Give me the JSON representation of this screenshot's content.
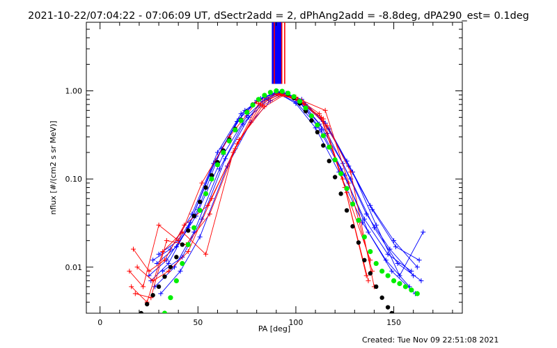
{
  "chart_data": {
    "type": "line",
    "title": "2021-10-22/07:04:22 - 07:06:09 UT, dSectr2add = 2, dPhAng2add = -8.8deg, dPA290_est=  0.1deg",
    "xlabel": "PA [deg]",
    "ylabel": "nflux [#/(cm2 s sr MeV)]",
    "footer": "Created: Tue Nov 09 22:51:08 2021",
    "xlim": [
      -7,
      185
    ],
    "ylim": [
      0.003,
      6.0
    ],
    "yscale": "log",
    "grid": false,
    "legend": "none",
    "x_ticks": [
      {
        "v": 0,
        "label": "0"
      },
      {
        "v": 50,
        "label": "50"
      },
      {
        "v": 100,
        "label": "100"
      },
      {
        "v": 150,
        "label": "150"
      }
    ],
    "y_ticks": [
      {
        "v": 0.01,
        "label": "0.01"
      },
      {
        "v": 0.1,
        "label": "0.10"
      },
      {
        "v": 1,
        "label": "1.00"
      }
    ],
    "colors": {
      "blue_series": "#0000ff",
      "red_series": "#ff0000",
      "green_fit": "#00ee00",
      "black_fit": "#000000"
    },
    "series": [
      {
        "color": "#0000ff",
        "style": "line-plus",
        "x": [
          25,
          34,
          45,
          58,
          70,
          80,
          90,
          100,
          110,
          122,
          134,
          146,
          158
        ],
        "y": [
          0.008,
          0.012,
          0.028,
          0.15,
          0.45,
          0.78,
          0.97,
          0.72,
          0.38,
          0.12,
          0.032,
          0.012,
          0.006
        ]
      },
      {
        "color": "#0000ff",
        "style": "line-plus",
        "x": [
          27,
          36,
          47,
          60,
          72,
          82,
          91,
          101,
          112,
          124,
          136,
          148,
          160
        ],
        "y": [
          0.012,
          0.016,
          0.04,
          0.2,
          0.55,
          0.82,
          0.98,
          0.78,
          0.42,
          0.15,
          0.04,
          0.016,
          0.008
        ]
      },
      {
        "color": "#0000ff",
        "style": "line-plus",
        "x": [
          28,
          38,
          48,
          61,
          73,
          83,
          92,
          102,
          113,
          125,
          137,
          149,
          161
        ],
        "y": [
          0.006,
          0.01,
          0.025,
          0.13,
          0.42,
          0.76,
          0.96,
          0.74,
          0.36,
          0.11,
          0.025,
          0.009,
          0.005
        ]
      },
      {
        "color": "#0000ff",
        "style": "line-plus",
        "x": [
          30,
          40,
          50,
          62,
          74,
          84,
          93,
          103,
          114,
          126,
          138,
          150,
          162
        ],
        "y": [
          0.014,
          0.02,
          0.045,
          0.22,
          0.6,
          0.85,
          0.97,
          0.8,
          0.45,
          0.16,
          0.05,
          0.02,
          0.01
        ]
      },
      {
        "color": "#0000ff",
        "style": "line-plus",
        "x": [
          32,
          42,
          52,
          64,
          76,
          86,
          94,
          104,
          116,
          128,
          140,
          152,
          164
        ],
        "y": [
          0.009,
          0.013,
          0.035,
          0.17,
          0.5,
          0.8,
          0.95,
          0.7,
          0.33,
          0.1,
          0.028,
          0.011,
          0.007
        ]
      },
      {
        "color": "#0000ff",
        "style": "line-plus",
        "x": [
          26,
          35,
          46,
          59,
          71,
          81,
          90,
          100,
          111,
          123,
          135,
          147,
          159
        ],
        "y": [
          0.007,
          0.011,
          0.032,
          0.16,
          0.48,
          0.79,
          0.95,
          0.75,
          0.4,
          0.13,
          0.035,
          0.014,
          0.009
        ]
      },
      {
        "color": "#0000ff",
        "style": "line-plus",
        "x": [
          29,
          39,
          49,
          63,
          75,
          85,
          92,
          102,
          115,
          127,
          139,
          151,
          163
        ],
        "y": [
          0.011,
          0.017,
          0.038,
          0.19,
          0.52,
          0.83,
          0.96,
          0.76,
          0.43,
          0.14,
          0.045,
          0.017,
          0.012
        ]
      },
      {
        "color": "#0000ff",
        "style": "line-plus",
        "x": [
          31,
          41,
          51,
          65,
          77,
          87,
          95,
          105,
          117,
          129,
          141,
          153,
          165
        ],
        "y": [
          0.005,
          0.009,
          0.022,
          0.14,
          0.44,
          0.77,
          0.94,
          0.7,
          0.37,
          0.12,
          0.03,
          0.008,
          0.025
        ]
      },
      {
        "color": "#ff0000",
        "style": "line-plus",
        "x": [
          15,
          22,
          30,
          40,
          52,
          66,
          80,
          90,
          100,
          112,
          124,
          136
        ],
        "y": [
          0.009,
          0.006,
          0.03,
          0.02,
          0.09,
          0.3,
          0.75,
          0.92,
          0.85,
          0.55,
          0.1,
          0.008
        ]
      },
      {
        "color": "#ff0000",
        "style": "line-plus",
        "x": [
          16,
          24,
          32,
          42,
          54,
          68,
          81,
          91,
          101,
          113,
          125,
          137
        ],
        "y": [
          0.006,
          0.004,
          0.015,
          0.025,
          0.014,
          0.2,
          0.72,
          0.9,
          0.8,
          0.5,
          0.08,
          0.007
        ]
      },
      {
        "color": "#ff0000",
        "style": "line-plus",
        "x": [
          17,
          25,
          33,
          43,
          55,
          69,
          82,
          92,
          102,
          114,
          126,
          138
        ],
        "y": [
          0.016,
          0.009,
          0.012,
          0.03,
          0.05,
          0.22,
          0.7,
          0.93,
          0.75,
          0.48,
          0.07,
          0.012
        ]
      },
      {
        "color": "#ff0000",
        "style": "line-plus",
        "x": [
          18,
          26,
          34,
          44,
          56,
          70,
          83,
          93,
          103,
          115,
          127,
          139
        ],
        "y": [
          0.005,
          0.0045,
          0.02,
          0.018,
          0.04,
          0.25,
          0.68,
          0.91,
          0.78,
          0.6,
          0.09,
          0.009
        ]
      },
      {
        "color": "#ff0000",
        "style": "line-plus",
        "x": [
          19,
          27,
          35,
          45,
          57,
          71,
          84,
          94,
          104,
          116,
          128,
          140
        ],
        "y": [
          0.01,
          0.007,
          0.009,
          0.015,
          0.06,
          0.28,
          0.66,
          0.9,
          0.72,
          0.4,
          0.12,
          0.006
        ]
      }
    ],
    "fit_green": {
      "color": "#00ee00",
      "x": [
        33,
        36,
        39,
        42,
        45,
        48,
        51,
        54,
        57,
        60,
        63,
        66,
        69,
        72,
        75,
        78,
        81,
        84,
        87,
        90,
        93,
        96,
        99,
        102,
        105,
        108,
        111,
        114,
        117,
        120,
        123,
        126,
        129,
        132,
        135,
        138,
        141,
        144,
        147,
        150,
        153,
        156,
        159,
        162
      ],
      "y": [
        0.003,
        0.0045,
        0.007,
        0.011,
        0.018,
        0.028,
        0.044,
        0.068,
        0.1,
        0.145,
        0.2,
        0.27,
        0.36,
        0.46,
        0.57,
        0.69,
        0.8,
        0.89,
        0.96,
        1.0,
        0.99,
        0.94,
        0.86,
        0.76,
        0.64,
        0.52,
        0.41,
        0.31,
        0.23,
        0.165,
        0.115,
        0.078,
        0.052,
        0.034,
        0.022,
        0.015,
        0.011,
        0.009,
        0.008,
        0.007,
        0.0065,
        0.006,
        0.0055,
        0.005
      ]
    },
    "fit_black": {
      "color": "#000000",
      "x": [
        21,
        24,
        27,
        30,
        33,
        36,
        39,
        42,
        45,
        48,
        51,
        54,
        57,
        60,
        63,
        66,
        69,
        72,
        75,
        78,
        81,
        84,
        87,
        90,
        93,
        96,
        99,
        102,
        105,
        108,
        111,
        114,
        117,
        120,
        123,
        126,
        129,
        132,
        135,
        138,
        141,
        144,
        147,
        149
      ],
      "y": [
        0.003,
        0.0038,
        0.0048,
        0.006,
        0.0078,
        0.01,
        0.013,
        0.018,
        0.026,
        0.038,
        0.055,
        0.08,
        0.11,
        0.155,
        0.21,
        0.28,
        0.37,
        0.47,
        0.58,
        0.7,
        0.8,
        0.89,
        0.96,
        1.0,
        0.98,
        0.92,
        0.83,
        0.72,
        0.59,
        0.46,
        0.34,
        0.24,
        0.16,
        0.105,
        0.068,
        0.044,
        0.029,
        0.019,
        0.012,
        0.0085,
        0.006,
        0.0045,
        0.0035,
        0.003
      ]
    },
    "vertical_lines": [
      {
        "color": "#0000ff",
        "x": [
          88.0,
          88.4,
          88.8,
          89.2,
          89.6,
          90.0,
          90.4,
          90.8,
          91.2,
          91.6,
          92.0,
          92.4
        ]
      },
      {
        "color": "#ff0000",
        "x": [
          89.0,
          92.8,
          94.3
        ]
      }
    ]
  }
}
